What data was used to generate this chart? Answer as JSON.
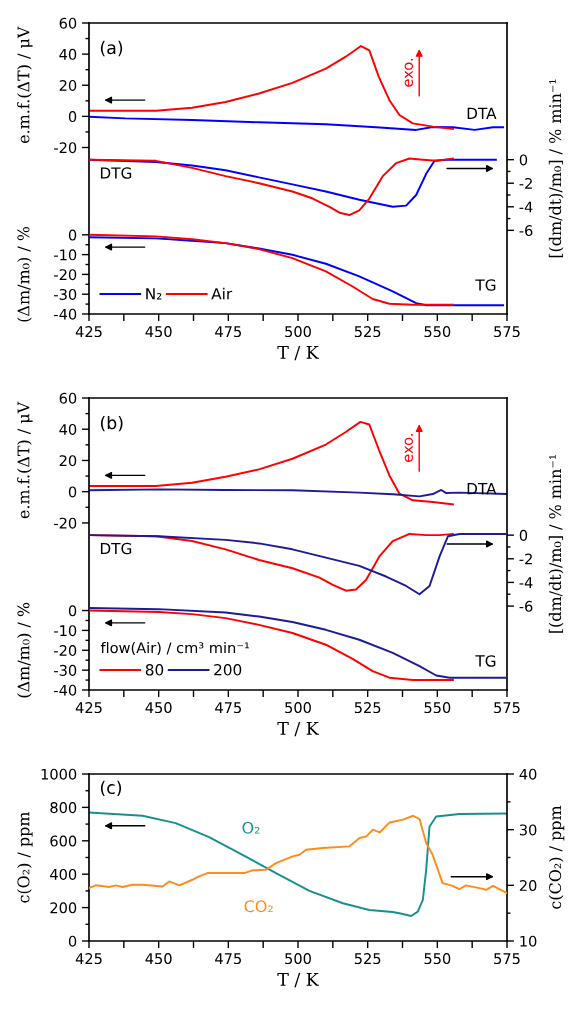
{
  "chart_data": [
    {
      "type": "line",
      "xlabel": "T / K",
      "ylabel": "e.m.f.(ΔT) / μV",
      "y2label": "[(dm/dt)/m₀] / % min⁻¹",
      "y3label": "(Δm/m₀) / %",
      "annotations": [
        "(a)",
        "DTA",
        "DTG",
        "TG",
        "exo."
      ],
      "xlim": [
        425,
        575
      ],
      "xticks": [
        425,
        {
          "value": 437.5,
          "label": null
        },
        450,
        {
          "value": 462.5,
          "label": null
        },
        475,
        {
          "value": 487.5,
          "label": null
        },
        500,
        {
          "value": 512.5,
          "label": null
        },
        525,
        {
          "value": 537.5,
          "label": null
        },
        550,
        {
          "value": 562.5,
          "label": null
        },
        575
      ],
      "ylim": [
        -127,
        60
      ],
      "yticks": [
        60,
        {
          "value": 50,
          "label": null
        },
        40,
        {
          "value": 30,
          "label": null
        },
        20,
        {
          "value": 10,
          "label": null
        },
        0,
        {
          "value": -10,
          "label": null
        },
        -20
      ],
      "y2lim": [
        -13.1,
        11.6
      ],
      "y2ticks": [
        0,
        {
          "value": -1,
          "label": null
        },
        -2,
        {
          "value": -3,
          "label": null
        },
        -4,
        {
          "value": -5,
          "label": null
        },
        -6
      ],
      "y3lim": [
        -40,
        107
      ],
      "y3ticks": [
        0,
        {
          "value": -5,
          "label": null
        },
        -10,
        {
          "value": -15,
          "label": null
        },
        -20,
        {
          "value": -25,
          "label": null
        },
        -30,
        {
          "value": -35,
          "label": null
        },
        -40
      ],
      "legend": "bottom left",
      "series": [
        {
          "axis": "y",
          "color": "#0000ff",
          "x": [
            425,
            438,
            462,
            486,
            510,
            528,
            542.4,
            548.4,
            555.6,
            563.4,
            570,
            573.6
          ],
          "values": [
            -0.2,
            -1.3,
            -2.3,
            -3.8,
            -5.1,
            -7.0,
            -8.7,
            -6.8,
            -7.0,
            -8.7,
            -7.0,
            -7.0
          ]
        },
        {
          "axis": "y",
          "color": "#ff0000",
          "x": [
            425,
            449,
            462,
            474,
            486,
            498,
            510,
            517,
            522.6,
            525.6,
            529,
            532.8,
            536.4,
            541.2,
            548.4,
            555.6
          ],
          "values": [
            3.6,
            3.6,
            5.5,
            9.2,
            14.7,
            21.5,
            30.7,
            38.2,
            45.2,
            42.4,
            25.4,
            10.4,
            0.9,
            -4.5,
            -6.6,
            -8.1
          ]
        },
        {
          "axis": "y2",
          "color": "#0000ff",
          "x": [
            425,
            449,
            462,
            474,
            486,
            498,
            510,
            522,
            534,
            538.8,
            542.4,
            546,
            549,
            553.2,
            571
          ],
          "values": [
            0,
            -0.2,
            -0.5,
            -0.9,
            -1.5,
            -2.1,
            -2.7,
            -3.4,
            -4.0,
            -3.9,
            -3.0,
            -1.2,
            -0.1,
            0,
            0
          ]
        },
        {
          "axis": "y2",
          "color": "#ff0000",
          "x": [
            425,
            449,
            462,
            474,
            486,
            498,
            505.3,
            511.3,
            514.9,
            518.4,
            522,
            525.6,
            530.4,
            535.2,
            540,
            544.8,
            549.6,
            555.6
          ],
          "values": [
            0,
            -0.1,
            -0.7,
            -1.4,
            -2.0,
            -2.7,
            -3.3,
            -4.0,
            -4.5,
            -4.7,
            -4.3,
            -3.3,
            -1.4,
            -0.3,
            0.1,
            0,
            -0.1,
            0.1
          ]
        },
        {
          "axis": "y3",
          "name": "N₂",
          "color": "#0000ff",
          "x": [
            425,
            449,
            462,
            474,
            486,
            498,
            510,
            522,
            534,
            542.4,
            546,
            573.6
          ],
          "values": [
            -1.2,
            -1.8,
            -3.0,
            -4.2,
            -6.9,
            -10.1,
            -14.6,
            -21.0,
            -28.6,
            -34.5,
            -35.6,
            -35.6
          ]
        },
        {
          "axis": "y3",
          "name": "Air",
          "color": "#ff0000",
          "x": [
            425,
            449,
            462,
            474,
            486,
            498,
            510,
            519.6,
            526.8,
            532.8,
            541.2,
            555.6
          ],
          "values": [
            0,
            -0.8,
            -2.2,
            -4.2,
            -7.2,
            -11.8,
            -18.5,
            -26.1,
            -32.4,
            -34.8,
            -35.3,
            -35.3
          ]
        }
      ]
    },
    {
      "type": "line",
      "xlabel": "T / K",
      "ylabel": "e.m.f.(ΔT) / μV",
      "y2label": "[(dm/dt)/m₀] / % min⁻¹",
      "y3label": "(Δm/m₀) / %",
      "annotations": [
        "(b)",
        "DTA",
        "DTG",
        "TG",
        "exo."
      ],
      "xlim": [
        425,
        575
      ],
      "xticks": [
        425,
        {
          "value": 437.5,
          "label": null
        },
        450,
        {
          "value": 462.5,
          "label": null
        },
        475,
        {
          "value": 487.5,
          "label": null
        },
        500,
        {
          "value": 512.5,
          "label": null
        },
        525,
        {
          "value": 537.5,
          "label": null
        },
        550,
        {
          "value": 562.5,
          "label": null
        },
        575
      ],
      "ylim": [
        -127,
        60
      ],
      "yticks": [
        60,
        {
          "value": 50,
          "label": null
        },
        40,
        {
          "value": 30,
          "label": null
        },
        20,
        {
          "value": 10,
          "label": null
        },
        0,
        {
          "value": -10,
          "label": null
        },
        -20
      ],
      "y2lim": [
        -13.1,
        11.6
      ],
      "y2ticks": [
        0,
        {
          "value": -1,
          "label": null
        },
        -2,
        {
          "value": -3,
          "label": null
        },
        -4,
        {
          "value": -5,
          "label": null
        },
        -6
      ],
      "y3lim": [
        -40,
        107
      ],
      "y3ticks": [
        0,
        {
          "value": -5,
          "label": null
        },
        -10,
        {
          "value": -15,
          "label": null
        },
        -20,
        {
          "value": -25,
          "label": null
        },
        -30,
        {
          "value": -35,
          "label": null
        },
        -40
      ],
      "legend": "bottom left",
      "legend_title": "flow(Air) / cm³ min⁻¹",
      "series": [
        {
          "axis": "y",
          "color": "#ff0000",
          "x": [
            425,
            449,
            462,
            474,
            486,
            498,
            510,
            517,
            522.4,
            525.6,
            529,
            532.8,
            536.4,
            541.2,
            548.4,
            555.6
          ],
          "values": [
            3.6,
            3.6,
            5.7,
            9.6,
            14.3,
            21.1,
            30.2,
            38.1,
            44.7,
            43.0,
            27.0,
            10.4,
            -1.3,
            -5.5,
            -6.6,
            -8.1
          ]
        },
        {
          "axis": "y",
          "color": "#1c1c96",
          "x": [
            425,
            450,
            474,
            498,
            522,
            534,
            543.6,
            548.4,
            551.4,
            553.2,
            558,
            575
          ],
          "values": [
            0.9,
            1.5,
            1.1,
            0.9,
            -0.6,
            -1.7,
            -3.0,
            -1.5,
            1.1,
            -0.9,
            -0.6,
            -1.5
          ]
        },
        {
          "axis": "y2",
          "color": "#ff0000",
          "x": [
            425,
            449,
            462,
            474,
            486,
            498,
            507.7,
            512.5,
            517.2,
            520.8,
            524.4,
            529.2,
            534,
            540,
            546,
            550.8,
            555.6
          ],
          "values": [
            0,
            -0.1,
            -0.5,
            -1.2,
            -2.1,
            -2.8,
            -3.6,
            -4.2,
            -4.7,
            -4.6,
            -3.8,
            -1.8,
            -0.5,
            0.1,
            0,
            0,
            0.1
          ]
        },
        {
          "axis": "y2",
          "color": "#1c1c96",
          "x": [
            425,
            450,
            474,
            486,
            498,
            510,
            522,
            531.6,
            538.8,
            543.6,
            547.2,
            550.8,
            553.8,
            558,
            575
          ],
          "values": [
            0,
            -0.1,
            -0.4,
            -0.7,
            -1.2,
            -1.9,
            -2.6,
            -3.5,
            -4.3,
            -5.0,
            -4.3,
            -1.8,
            -0.1,
            0.1,
            0.1
          ]
        },
        {
          "axis": "y3",
          "name": "80",
          "color": "#ff0000",
          "x": [
            425,
            450,
            462,
            474,
            486,
            498,
            510,
            519.6,
            526.8,
            532.8,
            541.2,
            555.6
          ],
          "values": [
            0,
            -0.7,
            -1.8,
            -3.8,
            -7.2,
            -11.3,
            -17.2,
            -24.3,
            -30.5,
            -33.8,
            -35.0,
            -35.0
          ]
        },
        {
          "axis": "y3",
          "name": "200",
          "color": "#1c1c96",
          "x": [
            425,
            450,
            474,
            486,
            498,
            510,
            522,
            534,
            543.6,
            549.6,
            554.4,
            575
          ],
          "values": [
            1.3,
            0.7,
            -1.0,
            -3.0,
            -5.8,
            -9.7,
            -14.7,
            -21.3,
            -28.0,
            -32.7,
            -33.8,
            -33.8
          ]
        }
      ]
    },
    {
      "type": "line",
      "xlabel": "T / K",
      "ylabel": "c(O₂) / ppm",
      "y2label": "c(CO₂) / ppm",
      "annotations": [
        "(c)"
      ],
      "xlim": [
        425,
        575
      ],
      "xticks": [
        425,
        {
          "value": 437.5,
          "label": null
        },
        450,
        {
          "value": 462.5,
          "label": null
        },
        475,
        {
          "value": 487.5,
          "label": null
        },
        500,
        {
          "value": 512.5,
          "label": null
        },
        525,
        {
          "value": 537.5,
          "label": null
        },
        550,
        {
          "value": 562.5,
          "label": null
        },
        575
      ],
      "ylim": [
        0,
        1000
      ],
      "yticks": [
        0,
        {
          "value": 100,
          "label": null
        },
        200,
        {
          "value": 300,
          "label": null
        },
        400,
        {
          "value": 500,
          "label": null
        },
        600,
        {
          "value": 700,
          "label": null
        },
        800,
        {
          "value": 900,
          "label": null
        },
        1000
      ],
      "y2lim": [
        10,
        40
      ],
      "y2ticks": [
        10,
        {
          "value": 15,
          "label": null
        },
        20,
        {
          "value": 25,
          "label": null
        },
        30,
        {
          "value": 35,
          "label": null
        },
        40
      ],
      "legend": false,
      "series": [
        {
          "axis": "y",
          "name": "O₂",
          "color": "#17918f",
          "x": [
            425,
            444.2,
            456.1,
            468.1,
            480.1,
            492.1,
            504.1,
            516.1,
            525.6,
            534,
            537.6,
            540.6,
            543,
            544.8,
            546,
            547.2,
            549.6,
            558,
            575
          ],
          "values": [
            770,
            750,
            706,
            622,
            516,
            406,
            300,
            226,
            186,
            174,
            162,
            150,
            176,
            246,
            426,
            686,
            746,
            760,
            764
          ]
        },
        {
          "axis": "y2",
          "name": "CO₂",
          "color": "#ff8c1a",
          "x": [
            425,
            427.4,
            432.2,
            434.6,
            437,
            440.6,
            444.2,
            451.4,
            453.8,
            457.4,
            462.1,
            464.5,
            467.5,
            474.1,
            480.7,
            483.7,
            488.5,
            492.1,
            498.1,
            500.5,
            502.9,
            508.9,
            518.5,
            522.1,
            524.5,
            526.9,
            529.3,
            532.9,
            537.7,
            541.3,
            543.6,
            546,
            548.3,
            551.9,
            555.5,
            557.9,
            560.3,
            565.1,
            567.6,
            570,
            575
          ],
          "values": [
            19.5,
            20.0,
            19.7,
            20.0,
            19.7,
            20.1,
            20.1,
            19.8,
            20.7,
            20.0,
            21.0,
            21.6,
            22.2,
            22.2,
            22.2,
            22.7,
            22.8,
            24.0,
            25.2,
            25.5,
            26.4,
            26.7,
            27.0,
            28.5,
            28.8,
            30.0,
            29.5,
            31.3,
            31.8,
            32.5,
            31.9,
            27.6,
            25.5,
            20.4,
            19.9,
            19.3,
            20.0,
            19.5,
            19.2,
            19.9,
            18.6
          ]
        }
      ]
    }
  ]
}
